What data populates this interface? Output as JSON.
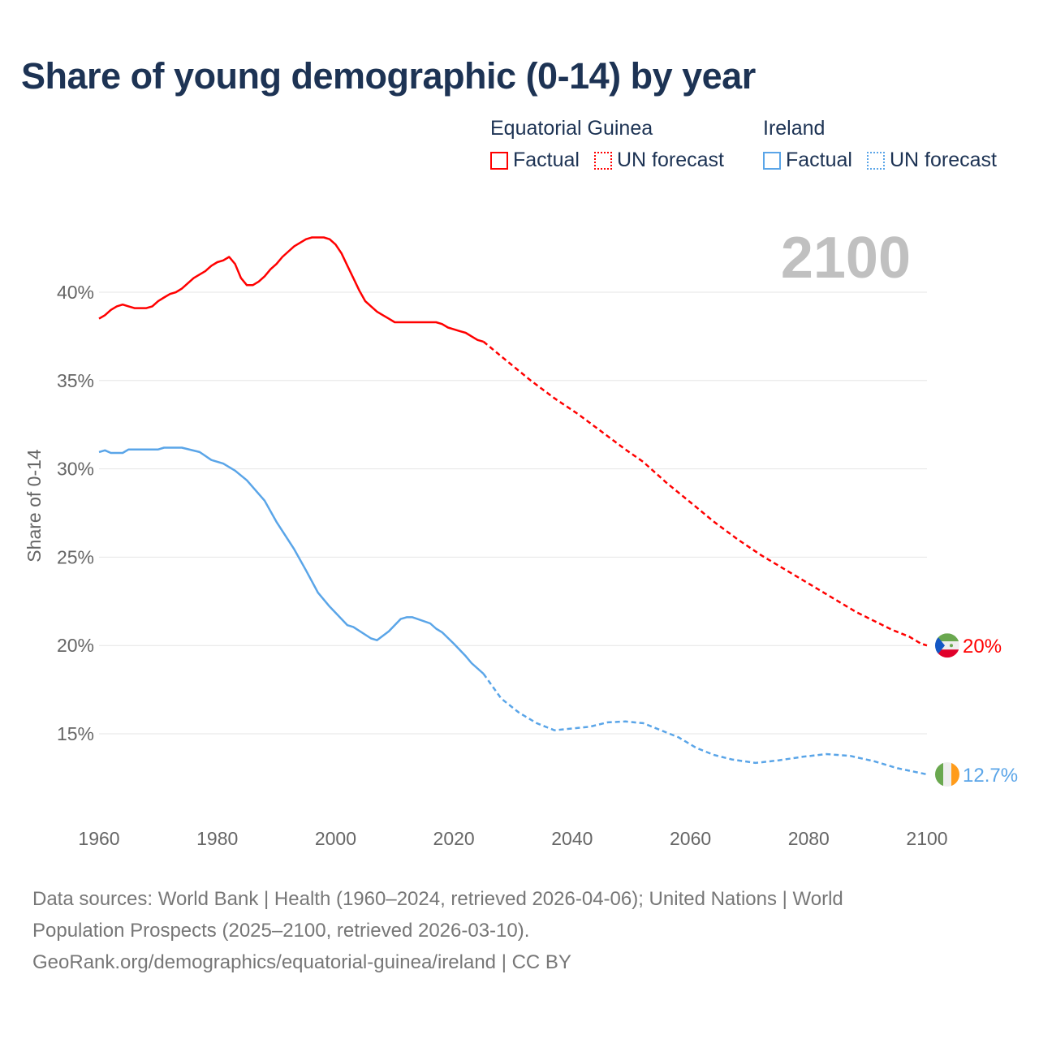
{
  "title": "Share of young demographic (0-14) by year",
  "legend": [
    {
      "country": "Equatorial Guinea",
      "factual": "Factual",
      "forecast": "UN forecast",
      "color": "#ff0000"
    },
    {
      "country": "Ireland",
      "factual": "Factual",
      "forecast": "UN forecast",
      "color": "#5aa5e8"
    }
  ],
  "footer": {
    "line1": "Data sources: World Bank | Health (1960–2024, retrieved 2026-04-06); United Nations | World",
    "line2": "Population Prospects (2025–2100, retrieved 2026-03-10).",
    "line3": "GeoRank.org/demographics/equatorial-guinea/ireland | CC BY"
  },
  "chart_data": {
    "type": "line",
    "title": "Share of young demographic (0-14) by year",
    "xlabel": "",
    "ylabel": "Share of 0-14",
    "current_year_label": "2100",
    "xlim": [
      1960,
      2100
    ],
    "ylim": [
      10.5,
      44
    ],
    "x_ticks": [
      "1960",
      "1980",
      "2000",
      "2020",
      "2040",
      "2060",
      "2080",
      "2100"
    ],
    "x_tick_values": [
      1960,
      1980,
      2000,
      2020,
      2040,
      2060,
      2080,
      2100
    ],
    "y_ticks": [
      "15%",
      "20%",
      "25%",
      "30%",
      "35%",
      "40%"
    ],
    "y_tick_values": [
      15,
      20,
      25,
      30,
      35,
      40
    ],
    "grid": true,
    "series": [
      {
        "name": "Equatorial Guinea",
        "color": "#ff0000",
        "end_label": "20%",
        "flag": "equatorial-guinea",
        "factual": {
          "x": [
            1960,
            1961,
            1962,
            1963,
            1964,
            1965,
            1966,
            1967,
            1968,
            1969,
            1970,
            1971,
            1972,
            1973,
            1974,
            1975,
            1976,
            1977,
            1978,
            1979,
            1980,
            1981,
            1982,
            1983,
            1984,
            1985,
            1986,
            1987,
            1988,
            1989,
            1990,
            1991,
            1992,
            1993,
            1994,
            1995,
            1996,
            1997,
            1998,
            1999,
            2000,
            2001,
            2002,
            2003,
            2004,
            2005,
            2006,
            2007,
            2008,
            2009,
            2010,
            2012,
            2014,
            2016,
            2017,
            2018,
            2019,
            2020,
            2021,
            2022,
            2023,
            2024,
            2025
          ],
          "y": [
            38.5,
            38.7,
            39.0,
            39.2,
            39.3,
            39.2,
            39.1,
            39.1,
            39.1,
            39.2,
            39.5,
            39.7,
            39.9,
            40.0,
            40.2,
            40.5,
            40.8,
            41.0,
            41.2,
            41.5,
            41.7,
            41.8,
            42.0,
            41.6,
            40.8,
            40.4,
            40.4,
            40.6,
            40.9,
            41.3,
            41.6,
            42.0,
            42.3,
            42.6,
            42.8,
            43.0,
            43.1,
            43.1,
            43.1,
            43.0,
            42.7,
            42.2,
            41.5,
            40.8,
            40.1,
            39.5,
            39.2,
            38.9,
            38.7,
            38.5,
            38.3,
            38.3,
            38.3,
            38.3,
            38.3,
            38.2,
            38.0,
            37.9,
            37.8,
            37.7,
            37.5,
            37.3,
            37.2
          ]
        },
        "forecast": {
          "x": [
            2025,
            2029,
            2033,
            2037,
            2041,
            2045,
            2049,
            2052,
            2056,
            2060,
            2064,
            2068,
            2072,
            2076,
            2080,
            2084,
            2088,
            2091,
            2094,
            2097,
            2099,
            2100
          ],
          "y": [
            37.2,
            36.1,
            35.0,
            34.0,
            33.1,
            32.1,
            31.1,
            30.4,
            29.2,
            28.1,
            27.0,
            26.0,
            25.1,
            24.3,
            23.5,
            22.7,
            21.9,
            21.4,
            20.9,
            20.5,
            20.1,
            20.0
          ]
        }
      },
      {
        "name": "Ireland",
        "color": "#5aa5e8",
        "end_label": "12.7%",
        "flag": "ireland",
        "factual": {
          "x": [
            1960,
            1961,
            1962,
            1964,
            1965,
            1970,
            1971,
            1974,
            1977,
            1979,
            1981,
            1983,
            1985,
            1988,
            1990,
            1993,
            1995,
            1997,
            1999,
            2000,
            2002,
            2003,
            2006,
            2007,
            2009,
            2011,
            2012,
            2013,
            2016,
            2017,
            2018,
            2020,
            2022,
            2023,
            2025
          ],
          "y": [
            30.95,
            31.05,
            30.9,
            30.9,
            31.1,
            31.1,
            31.2,
            31.2,
            30.95,
            30.5,
            30.3,
            29.9,
            29.35,
            28.2,
            27.0,
            25.45,
            24.25,
            23.0,
            22.2,
            21.85,
            21.15,
            21.05,
            20.4,
            20.3,
            20.8,
            21.5,
            21.6,
            21.6,
            21.25,
            20.95,
            20.75,
            20.1,
            19.4,
            19.0,
            18.4
          ]
        },
        "forecast": {
          "x": [
            2025,
            2028,
            2031,
            2034,
            2037,
            2040,
            2043,
            2046,
            2049,
            2052,
            2055,
            2058,
            2061,
            2064,
            2067,
            2071,
            2075,
            2079,
            2083,
            2087,
            2091,
            2095,
            2100
          ],
          "y": [
            18.4,
            17.0,
            16.2,
            15.6,
            15.2,
            15.3,
            15.4,
            15.65,
            15.7,
            15.6,
            15.2,
            14.8,
            14.2,
            13.8,
            13.55,
            13.35,
            13.5,
            13.7,
            13.85,
            13.75,
            13.45,
            13.05,
            12.7
          ]
        }
      }
    ]
  }
}
